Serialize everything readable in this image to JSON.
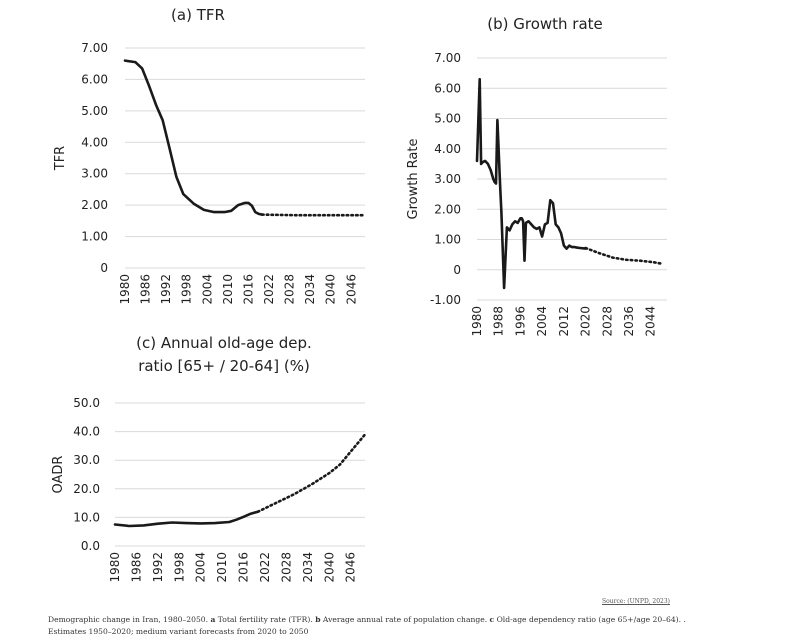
{
  "chart_data": [
    {
      "type": "line",
      "title": "(a) TFR",
      "ylabel": "TFR",
      "xlabel": "",
      "ylim": [
        0,
        7
      ],
      "xlim": [
        1980,
        2050
      ],
      "y_ticks": [
        "0",
        "1.00",
        "2.00",
        "3.00",
        "4.00",
        "5.00",
        "6.00",
        "7.00"
      ],
      "y_tick_values": [
        0,
        1,
        2,
        3,
        4,
        5,
        6,
        7
      ],
      "x_ticks": [
        "1980",
        "1986",
        "1992",
        "1998",
        "2004",
        "2010",
        "2016",
        "2022",
        "2028",
        "2034",
        "2040",
        "2046"
      ],
      "x_tick_values": [
        1980,
        1986,
        1992,
        1998,
        2004,
        2010,
        2016,
        2022,
        2028,
        2034,
        2040,
        2046
      ],
      "grid": true,
      "series": [
        {
          "name": "Estimates",
          "style": "solid",
          "x": [
            1980,
            1983,
            1985,
            1987,
            1989,
            1991,
            1993,
            1995,
            1997,
            2000,
            2003,
            2006,
            2009,
            2011,
            2013,
            2015,
            2016,
            2017,
            2018,
            2019,
            2020
          ],
          "y": [
            6.6,
            6.55,
            6.35,
            5.8,
            5.2,
            4.7,
            3.8,
            2.9,
            2.35,
            2.05,
            1.85,
            1.78,
            1.78,
            1.82,
            2.0,
            2.07,
            2.07,
            1.98,
            1.78,
            1.72,
            1.7
          ]
        },
        {
          "name": "Medium variant forecast",
          "style": "dotted",
          "x": [
            2020,
            2025,
            2030,
            2035,
            2040,
            2045,
            2050
          ],
          "y": [
            1.7,
            1.69,
            1.68,
            1.68,
            1.68,
            1.68,
            1.68
          ]
        }
      ]
    },
    {
      "type": "line",
      "title": "(b) Growth rate",
      "ylabel": "Growth Rate",
      "xlabel": "",
      "ylim": [
        -1,
        7
      ],
      "xlim": [
        1980,
        2050
      ],
      "y_ticks": [
        "-1.00",
        "0",
        "1.00",
        "2.00",
        "3.00",
        "4.00",
        "5.00",
        "6.00",
        "7.00"
      ],
      "y_tick_values": [
        -1,
        0,
        1,
        2,
        3,
        4,
        5,
        6,
        7
      ],
      "x_ticks": [
        "1980",
        "1988",
        "1996",
        "2004",
        "2012",
        "2020",
        "2028",
        "2036",
        "2044"
      ],
      "x_tick_values": [
        1980,
        1988,
        1996,
        2004,
        2012,
        2020,
        2028,
        2036,
        2044
      ],
      "grid": true,
      "series": [
        {
          "name": "Estimates",
          "style": "solid",
          "x": [
            1980,
            1981,
            1981.5,
            1982,
            1983,
            1984,
            1985,
            1986,
            1986.5,
            1987,
            1987.5,
            1988.5,
            1989,
            1990,
            1991,
            1992,
            1993,
            1994,
            1995,
            1996,
            1996.5,
            1997,
            1997.5,
            1998,
            1999,
            2000,
            2001,
            2002,
            2003,
            2004,
            2005,
            2006,
            2007,
            2008,
            2009,
            2010,
            2011,
            2012,
            2013,
            2014,
            2015,
            2016,
            2017,
            2018,
            2019,
            2020
          ],
          "y": [
            3.6,
            6.3,
            3.5,
            3.55,
            3.6,
            3.5,
            3.3,
            3.0,
            2.9,
            2.85,
            4.95,
            2.8,
            1.9,
            -0.6,
            1.4,
            1.3,
            1.5,
            1.6,
            1.55,
            1.7,
            1.7,
            1.6,
            0.3,
            1.55,
            1.6,
            1.5,
            1.4,
            1.35,
            1.4,
            1.1,
            1.5,
            1.55,
            2.3,
            2.2,
            1.5,
            1.4,
            1.2,
            0.8,
            0.7,
            0.8,
            0.75,
            0.75,
            0.73,
            0.72,
            0.71,
            0.7
          ]
        },
        {
          "name": "Medium variant forecast",
          "style": "dotted",
          "x": [
            2020,
            2025,
            2030,
            2035,
            2040,
            2045,
            2048
          ],
          "y": [
            0.72,
            0.55,
            0.4,
            0.33,
            0.3,
            0.25,
            0.2
          ]
        }
      ]
    },
    {
      "type": "line",
      "title": "(c) Annual old-age dep. ratio [65+ / 20-64] (%)",
      "title_lines": [
        "(c) Annual old-age dep.",
        "ratio [65+ / 20-64] (%)"
      ],
      "ylabel": "OADR",
      "xlabel": "",
      "ylim": [
        0,
        50
      ],
      "xlim": [
        1980,
        2050
      ],
      "y_ticks": [
        "0.0",
        "10.0",
        "20.0",
        "30.0",
        "40.0",
        "50.0"
      ],
      "y_tick_values": [
        0,
        10,
        20,
        30,
        40,
        50
      ],
      "x_ticks": [
        "1980",
        "1986",
        "1992",
        "1998",
        "2004",
        "2010",
        "2016",
        "2022",
        "2028",
        "2034",
        "2040",
        "2046"
      ],
      "x_tick_values": [
        1980,
        1986,
        1992,
        1998,
        2004,
        2010,
        2016,
        2022,
        2028,
        2034,
        2040,
        2046
      ],
      "grid": true,
      "series": [
        {
          "name": "Estimates",
          "style": "solid",
          "x": [
            1980,
            1984,
            1988,
            1992,
            1996,
            2000,
            2004,
            2008,
            2012,
            2014,
            2016,
            2018,
            2020
          ],
          "y": [
            7.5,
            7.0,
            7.2,
            7.8,
            8.2,
            8.0,
            7.9,
            8.0,
            8.4,
            9.2,
            10.2,
            11.3,
            12.0
          ]
        },
        {
          "name": "Medium variant forecast",
          "style": "dotted",
          "x": [
            2020,
            2025,
            2030,
            2035,
            2040,
            2043,
            2046,
            2048,
            2050
          ],
          "y": [
            12.0,
            15.0,
            18.0,
            21.5,
            25.5,
            28.5,
            33.0,
            36.0,
            39.0
          ]
        }
      ]
    }
  ],
  "source": {
    "prefix": "Source: (UNPD, ",
    "link": "2023",
    "suffix": ")"
  },
  "caption": {
    "intro": "Demographic change in Iran, 1980–2050. ",
    "a_letter": "a",
    "a_text": " Total fertility rate (TFR). ",
    "b_letter": "b",
    "b_text": " Average annual rate of population change. ",
    "c_letter": "c",
    "c_text": " Old-age dependency ratio (age 65+/age 20–64). . Estimates 1950–2020; medium variant forecasts from 2020 to 2050"
  }
}
